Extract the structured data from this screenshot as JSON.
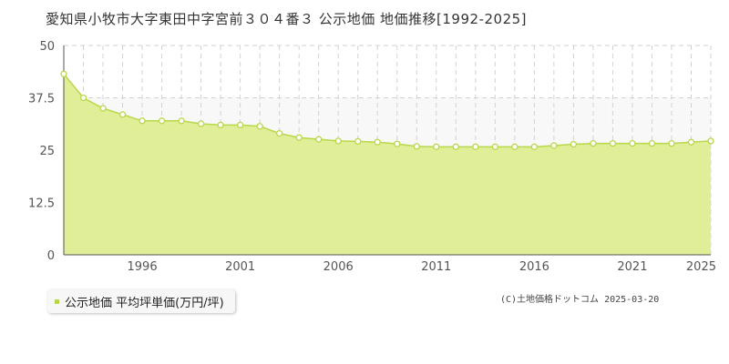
{
  "title": "愛知県小牧市大字東田中字宮前３０４番３ 公示地価 地価推移[1992-2025]",
  "legend": {
    "label": "公示地価 平均坪単価(万円/坪)"
  },
  "credit": "(C)土地価格ドットコム 2025-03-20",
  "colors": {
    "fill": "#e0ee98",
    "line": "#b8d84a",
    "upper_band": "#f8f8f8",
    "grid": "#d2d2d2",
    "axis": "#555555",
    "point_fill": "#ffffff"
  },
  "chart_data": {
    "type": "area",
    "title": "愛知県小牧市大字東田中字宮前３０４番３ 公示地価 地価推移[1992-2025]",
    "xlabel": "",
    "ylabel": "",
    "ylim": [
      0,
      50
    ],
    "xlim": [
      1992,
      2025
    ],
    "y_ticks": [
      "0",
      "12.5",
      "25",
      "37.5",
      "50"
    ],
    "x_ticks": [
      "1996",
      "2001",
      "2006",
      "2011",
      "2016",
      "2021",
      "2025"
    ],
    "grid": true,
    "legend_position": "bottom-left",
    "x": [
      1992,
      1993,
      1994,
      1995,
      1996,
      1997,
      1998,
      1999,
      2000,
      2001,
      2002,
      2003,
      2004,
      2005,
      2006,
      2007,
      2008,
      2009,
      2010,
      2011,
      2012,
      2013,
      2014,
      2015,
      2016,
      2017,
      2018,
      2019,
      2020,
      2021,
      2022,
      2023,
      2024,
      2025
    ],
    "series": [
      {
        "name": "公示地価 平均坪単価(万円/坪)",
        "values": [
          43.2,
          37.5,
          35.0,
          33.5,
          32.0,
          32.0,
          32.0,
          31.3,
          31.0,
          31.0,
          30.7,
          29.0,
          28.0,
          27.6,
          27.2,
          27.1,
          26.9,
          26.5,
          25.9,
          25.8,
          25.8,
          25.8,
          25.8,
          25.8,
          25.8,
          26.1,
          26.4,
          26.6,
          26.6,
          26.6,
          26.6,
          26.6,
          26.9,
          27.2
        ]
      }
    ]
  }
}
